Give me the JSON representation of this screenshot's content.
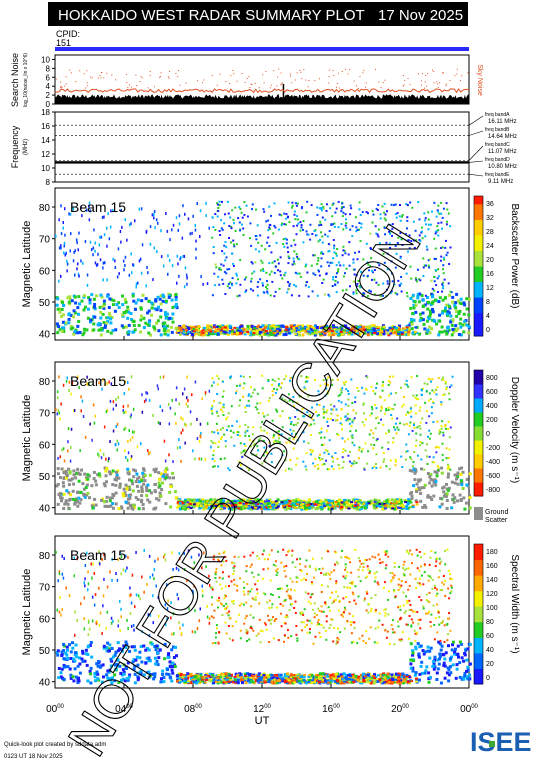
{
  "header": {
    "title": "HOKKAIDO WEST RADAR SUMMARY PLOT",
    "date": "17 Nov 2025",
    "cpid_label": "CPID:",
    "cpid_value": "151"
  },
  "noise_panel": {
    "ylabel": "Search Noise",
    "ylabel_sub": "log_10(noise_lin x 10^6)",
    "sky_label": "Sky Noise",
    "yticks": [
      "0",
      "2",
      "4",
      "6",
      "8",
      "10"
    ],
    "ylim": [
      0,
      11
    ]
  },
  "freq_panel": {
    "ylabel": "Frequency",
    "unit": "(MHz)",
    "yticks": [
      "8",
      "10",
      "12",
      "14",
      "16",
      "18"
    ],
    "ylim": [
      8,
      18
    ],
    "bands": [
      {
        "label": "freq bandA",
        "value": "16.11 MHz",
        "mhz": 16.11
      },
      {
        "label": "freq bandB",
        "value": "14.64 MHz",
        "mhz": 14.64
      },
      {
        "label": "freq bandC",
        "value": "11.07 MHz",
        "mhz": 11.07
      },
      {
        "label": "freq bandD",
        "value": "10.80 MHz",
        "mhz": 10.8
      },
      {
        "label": "freq bandE",
        "value": "9.11 MHz",
        "mhz": 9.11
      }
    ]
  },
  "panels": [
    {
      "beam": "Beam 15",
      "ylabel": "Magnetic Latitude",
      "cbar_label": "Backscatter Power (dB)",
      "cbar_ticks": [
        "0",
        "4",
        "8",
        "12",
        "16",
        "20",
        "24",
        "28",
        "32",
        "36"
      ],
      "extra": ""
    },
    {
      "beam": "Beam 15",
      "ylabel": "Magnetic Latitude",
      "cbar_label": "Doppler Velocity (m s⁻¹)",
      "cbar_ticks": [
        "-800",
        "-600",
        "-400",
        "-200",
        "0",
        "200",
        "400",
        "600",
        "800"
      ],
      "extra": "Ground Scatter"
    },
    {
      "beam": "Beam 15",
      "ylabel": "Magnetic Latitude",
      "cbar_label": "Spectral Width (m s⁻¹)",
      "cbar_ticks": [
        "0",
        "20",
        "40",
        "60",
        "80",
        "100",
        "120",
        "140",
        "160",
        "180"
      ],
      "extra": ""
    }
  ],
  "lat_ticks": [
    "40",
    "50",
    "60",
    "70",
    "80"
  ],
  "lat_range": [
    38,
    86
  ],
  "xaxis": {
    "label": "UT",
    "ticks": [
      "00",
      "04",
      "08",
      "12",
      "16",
      "20",
      "00"
    ],
    "tick_sup": "00"
  },
  "footer": {
    "line1": "Quick-look plot created by sddata.adm",
    "line2": "0123 UT 18 Nov 2025",
    "logo": "ISEE"
  },
  "watermark": "NOT FOR PUBLICATION",
  "colors": {
    "cpid_bar": "#2a2aff",
    "title_bg": "#000000",
    "noise_red": "#e05020",
    "ground_scatter": "#8c8c8c",
    "logo_green": "#3aa935",
    "logo_blue": "#1a5fb4"
  },
  "chart_data": [
    {
      "type": "line",
      "title": "Search Noise",
      "x_range_ut_hours": [
        0,
        24
      ],
      "series": [
        {
          "name": "Sky Noise",
          "level_approx": 3
        }
      ]
    },
    {
      "type": "line",
      "title": "Frequency",
      "x_range_ut_hours": [
        0,
        24
      ],
      "series": [
        {
          "name": "10.80 MHz",
          "mhz": 10.8
        }
      ]
    },
    {
      "type": "heatmap",
      "title": "Backscatter Power (dB)",
      "x_range_ut_hours": [
        0,
        24
      ],
      "ylim": [
        38,
        86
      ],
      "zlim": [
        0,
        38
      ]
    },
    {
      "type": "heatmap",
      "title": "Doppler Velocity (m s⁻¹)",
      "x_range_ut_hours": [
        0,
        24
      ],
      "ylim": [
        38,
        86
      ],
      "zlim": [
        -900,
        900
      ]
    },
    {
      "type": "heatmap",
      "title": "Spectral Width (m s⁻¹)",
      "x_range_ut_hours": [
        0,
        24
      ],
      "ylim": [
        38,
        86
      ],
      "zlim": [
        0,
        190
      ]
    }
  ]
}
